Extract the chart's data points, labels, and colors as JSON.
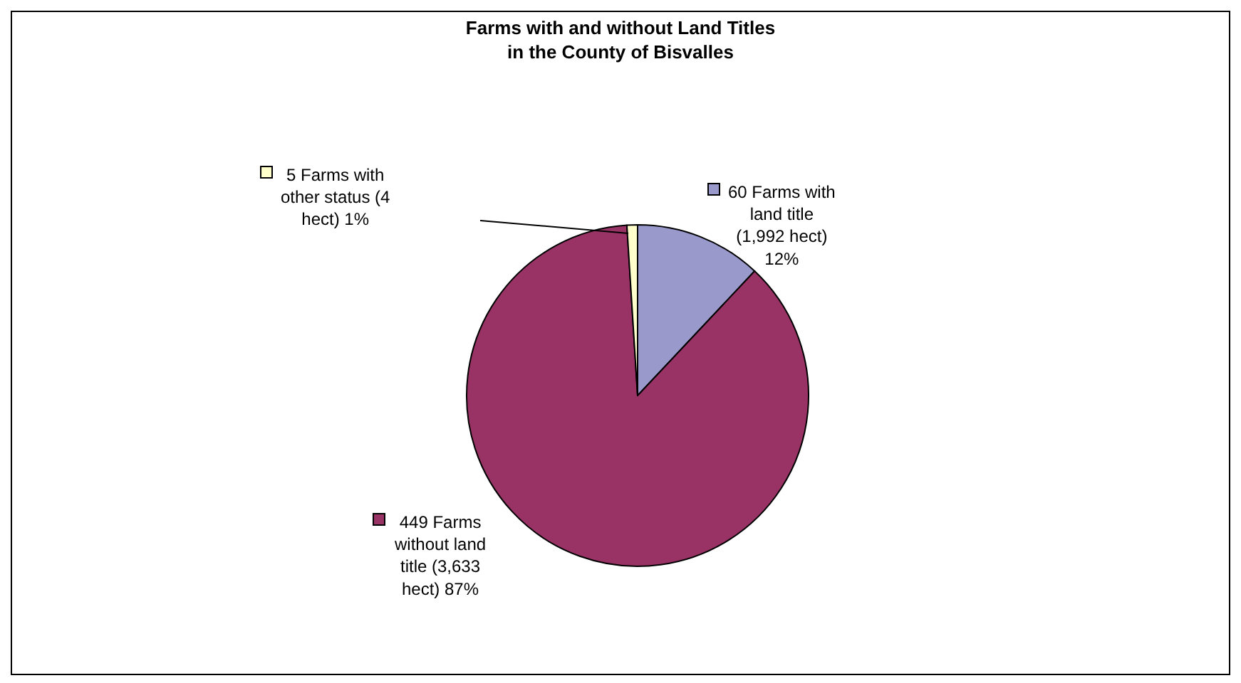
{
  "chart_data": {
    "type": "pie",
    "title": "Farms with and without Land Titles\nin the County of Bisvalles",
    "categories": [
      "60 Farms with land title (1,992 hect) 12%",
      "449 Farms without land title (3,633 hect) 87%",
      "5 Farms with other status (4 hect) 1%"
    ],
    "values": [
      12,
      87,
      1
    ],
    "colors": [
      "#9999cc",
      "#993366",
      "#ffffcc"
    ],
    "legend": "left"
  }
}
